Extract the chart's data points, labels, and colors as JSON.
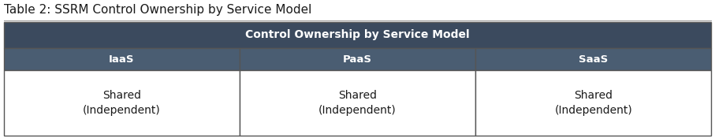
{
  "title": "Table 2: SSRM Control Ownership by Service Model",
  "header_main": "Control Ownership by Service Model",
  "columns": [
    "IaaS",
    "PaaS",
    "SaaS"
  ],
  "cell_content": [
    "Shared\n(Independent)",
    "Shared\n(Independent)",
    "Shared\n(Independent)"
  ],
  "header_bg_color": "#3b4a5e",
  "header_text_color": "#ffffff",
  "subheader_bg_color": "#4a5d72",
  "subheader_text_color": "#ffffff",
  "cell_bg_color": "#ffffff",
  "cell_text_color": "#1a1a1a",
  "border_color": "#555555",
  "title_fontsize": 11,
  "header_fontsize": 10,
  "subheader_fontsize": 9.5,
  "cell_fontsize": 10,
  "fig_width": 9.07,
  "fig_height": 1.75,
  "dpi": 100
}
